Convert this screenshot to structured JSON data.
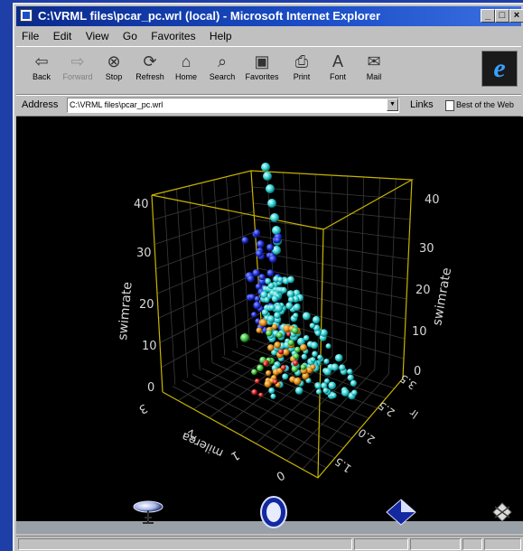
{
  "window": {
    "title": "C:\\VRML files\\pcar_pc.wrl (local) - Microsoft Internet Explorer",
    "controls": [
      "_",
      "□",
      "×"
    ]
  },
  "menu": [
    "File",
    "Edit",
    "View",
    "Go",
    "Favorites",
    "Help"
  ],
  "toolbar": {
    "buttons": [
      {
        "label": "Back",
        "icon": "back-arrow-icon"
      },
      {
        "label": "Forward",
        "icon": "forward-arrow-icon",
        "disabled": true
      },
      {
        "label": "Stop",
        "icon": "stop-icon"
      },
      {
        "label": "Refresh",
        "icon": "refresh-icon"
      },
      {
        "label": "Home",
        "icon": "home-icon"
      },
      {
        "label": "Search",
        "icon": "search-icon"
      },
      {
        "label": "Favorites",
        "icon": "favorites-icon"
      },
      {
        "label": "Print",
        "icon": "print-icon"
      },
      {
        "label": "Font",
        "icon": "font-icon"
      },
      {
        "label": "Mail",
        "icon": "mail-icon"
      }
    ]
  },
  "address": {
    "label": "Address",
    "value": "C:\\VRML files\\pcar_pc.wrl",
    "links_label": "Links",
    "best_of_web": "Best of the Web"
  },
  "viewer": {
    "left_axis_ticks": [
      "40",
      "30",
      "20",
      "10",
      "0"
    ],
    "left_axis_label": "swimrate",
    "right_axis_ticks": [
      "40",
      "30",
      "20",
      "10",
      "0"
    ],
    "right_axis_label": "swimrate",
    "bottom_left_ticks": [
      "3",
      "2",
      "1",
      "0"
    ],
    "bottom_left_label": "milerea",
    "bottom_right_ticks": [
      "3.5",
      "2.5",
      "2.0",
      "1.5"
    ],
    "bottom_right_label": "lr"
  },
  "colors": {
    "titlebar": "#0a2a8c",
    "box": "#c8b400",
    "grid": "#3a3a3a",
    "cyan": "#2ecfd0",
    "blue": "#2030d8",
    "orange": "#e08a10",
    "green": "#3fc23f",
    "red": "#d02020"
  }
}
